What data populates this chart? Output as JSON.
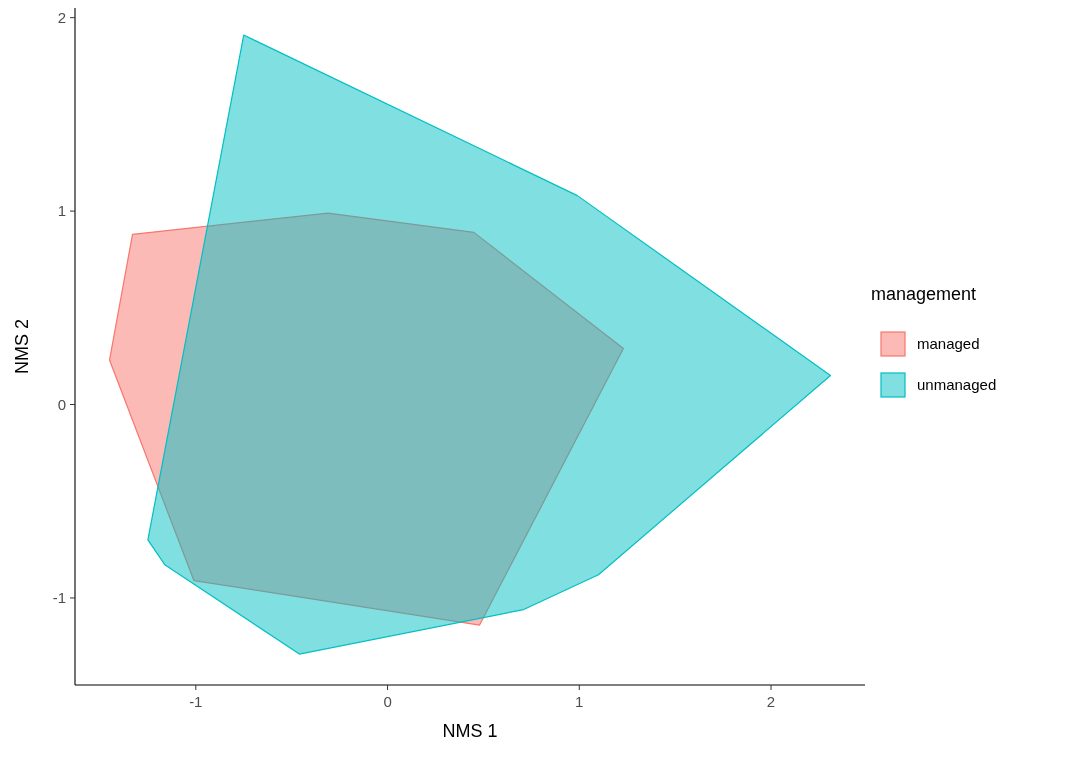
{
  "chart_data": {
    "type": "area",
    "xlabel": "NMS 1",
    "ylabel": "NMS 2",
    "legend_title": "management",
    "legend": "right",
    "grid": false,
    "xlim": [
      -1.63,
      2.49
    ],
    "ylim": [
      -1.45,
      2.05
    ],
    "xticks": [
      -1,
      0,
      1,
      2
    ],
    "yticks": [
      -1,
      0,
      1,
      2
    ],
    "series": [
      {
        "name": "managed",
        "color": "#f8766d",
        "x": [
          -1.45,
          -1.33,
          -0.31,
          0.45,
          1.23,
          0.48,
          -1.01
        ],
        "values": [
          0.23,
          0.88,
          0.99,
          0.89,
          0.29,
          -1.14,
          -0.91
        ]
      },
      {
        "name": "unmanaged",
        "color": "#00bfc4",
        "x": [
          -0.75,
          0.99,
          2.31,
          1.1,
          0.71,
          -0.46,
          -1.16,
          -1.25
        ],
        "values": [
          1.91,
          1.08,
          0.15,
          -0.88,
          -1.06,
          -1.29,
          -0.83,
          -0.7
        ]
      }
    ]
  }
}
